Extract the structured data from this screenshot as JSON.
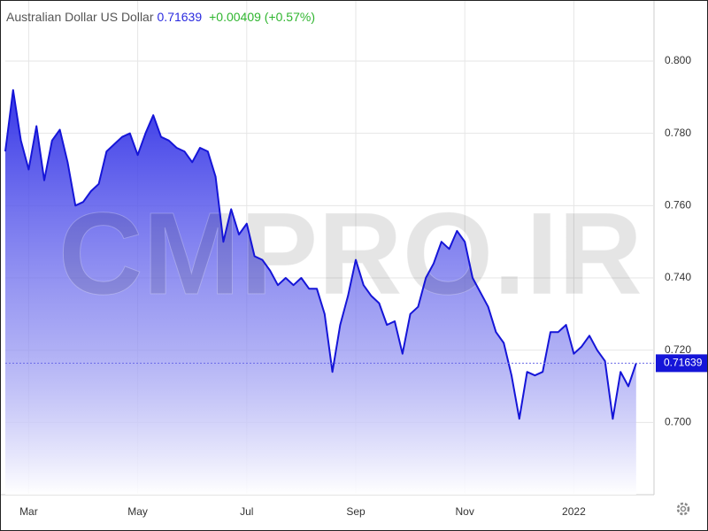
{
  "chart_data": {
    "type": "area",
    "title": "Australian Dollar US Dollar",
    "last_price": 0.71639,
    "change_label": "+0.00409 (+0.57%)",
    "watermark": "CMPRO.IR",
    "color": "#1515d8",
    "categories": [
      null,
      null,
      null,
      "Mar",
      null,
      null,
      null,
      null,
      null,
      null,
      null,
      null,
      null,
      null,
      null,
      null,
      null,
      "May",
      null,
      null,
      null,
      null,
      null,
      null,
      null,
      null,
      null,
      null,
      null,
      null,
      null,
      "Jul",
      null,
      null,
      null,
      null,
      null,
      null,
      null,
      null,
      null,
      null,
      null,
      null,
      null,
      "Sep",
      null,
      null,
      null,
      null,
      null,
      null,
      null,
      null,
      null,
      null,
      null,
      null,
      null,
      "Nov",
      null,
      null,
      null,
      null,
      null,
      null,
      null,
      null,
      null,
      null,
      null,
      null,
      null,
      "2022",
      null,
      null,
      null,
      null,
      null,
      null,
      null,
      null
    ],
    "values": [
      0.775,
      0.792,
      0.778,
      0.77,
      0.782,
      0.767,
      0.778,
      0.781,
      0.772,
      0.76,
      0.761,
      0.764,
      0.766,
      0.775,
      0.777,
      0.779,
      0.78,
      0.774,
      0.78,
      0.785,
      0.779,
      0.778,
      0.776,
      0.775,
      0.772,
      0.776,
      0.775,
      0.768,
      0.75,
      0.759,
      0.752,
      0.755,
      0.746,
      0.745,
      0.742,
      0.738,
      0.74,
      0.738,
      0.74,
      0.737,
      0.737,
      0.73,
      0.714,
      0.727,
      0.735,
      0.745,
      0.738,
      0.735,
      0.733,
      0.727,
      0.728,
      0.719,
      0.73,
      0.732,
      0.74,
      0.744,
      0.75,
      0.748,
      0.753,
      0.75,
      0.74,
      0.736,
      0.732,
      0.725,
      0.722,
      0.713,
      0.701,
      0.714,
      0.713,
      0.714,
      0.725,
      0.725,
      0.727,
      0.719,
      0.721,
      0.724,
      0.72,
      0.717,
      0.701,
      0.714,
      0.71,
      0.71639
    ],
    "ylim": [
      0.68,
      0.8142
    ],
    "yticks": [
      {
        "value": 0.7,
        "label": "0.700"
      },
      {
        "value": 0.72,
        "label": "0.720"
      },
      {
        "value": 0.74,
        "label": "0.740"
      },
      {
        "value": 0.76,
        "label": "0.760"
      },
      {
        "value": 0.78,
        "label": "0.780"
      },
      {
        "value": 0.8,
        "label": "0.800"
      }
    ],
    "grid": true
  }
}
